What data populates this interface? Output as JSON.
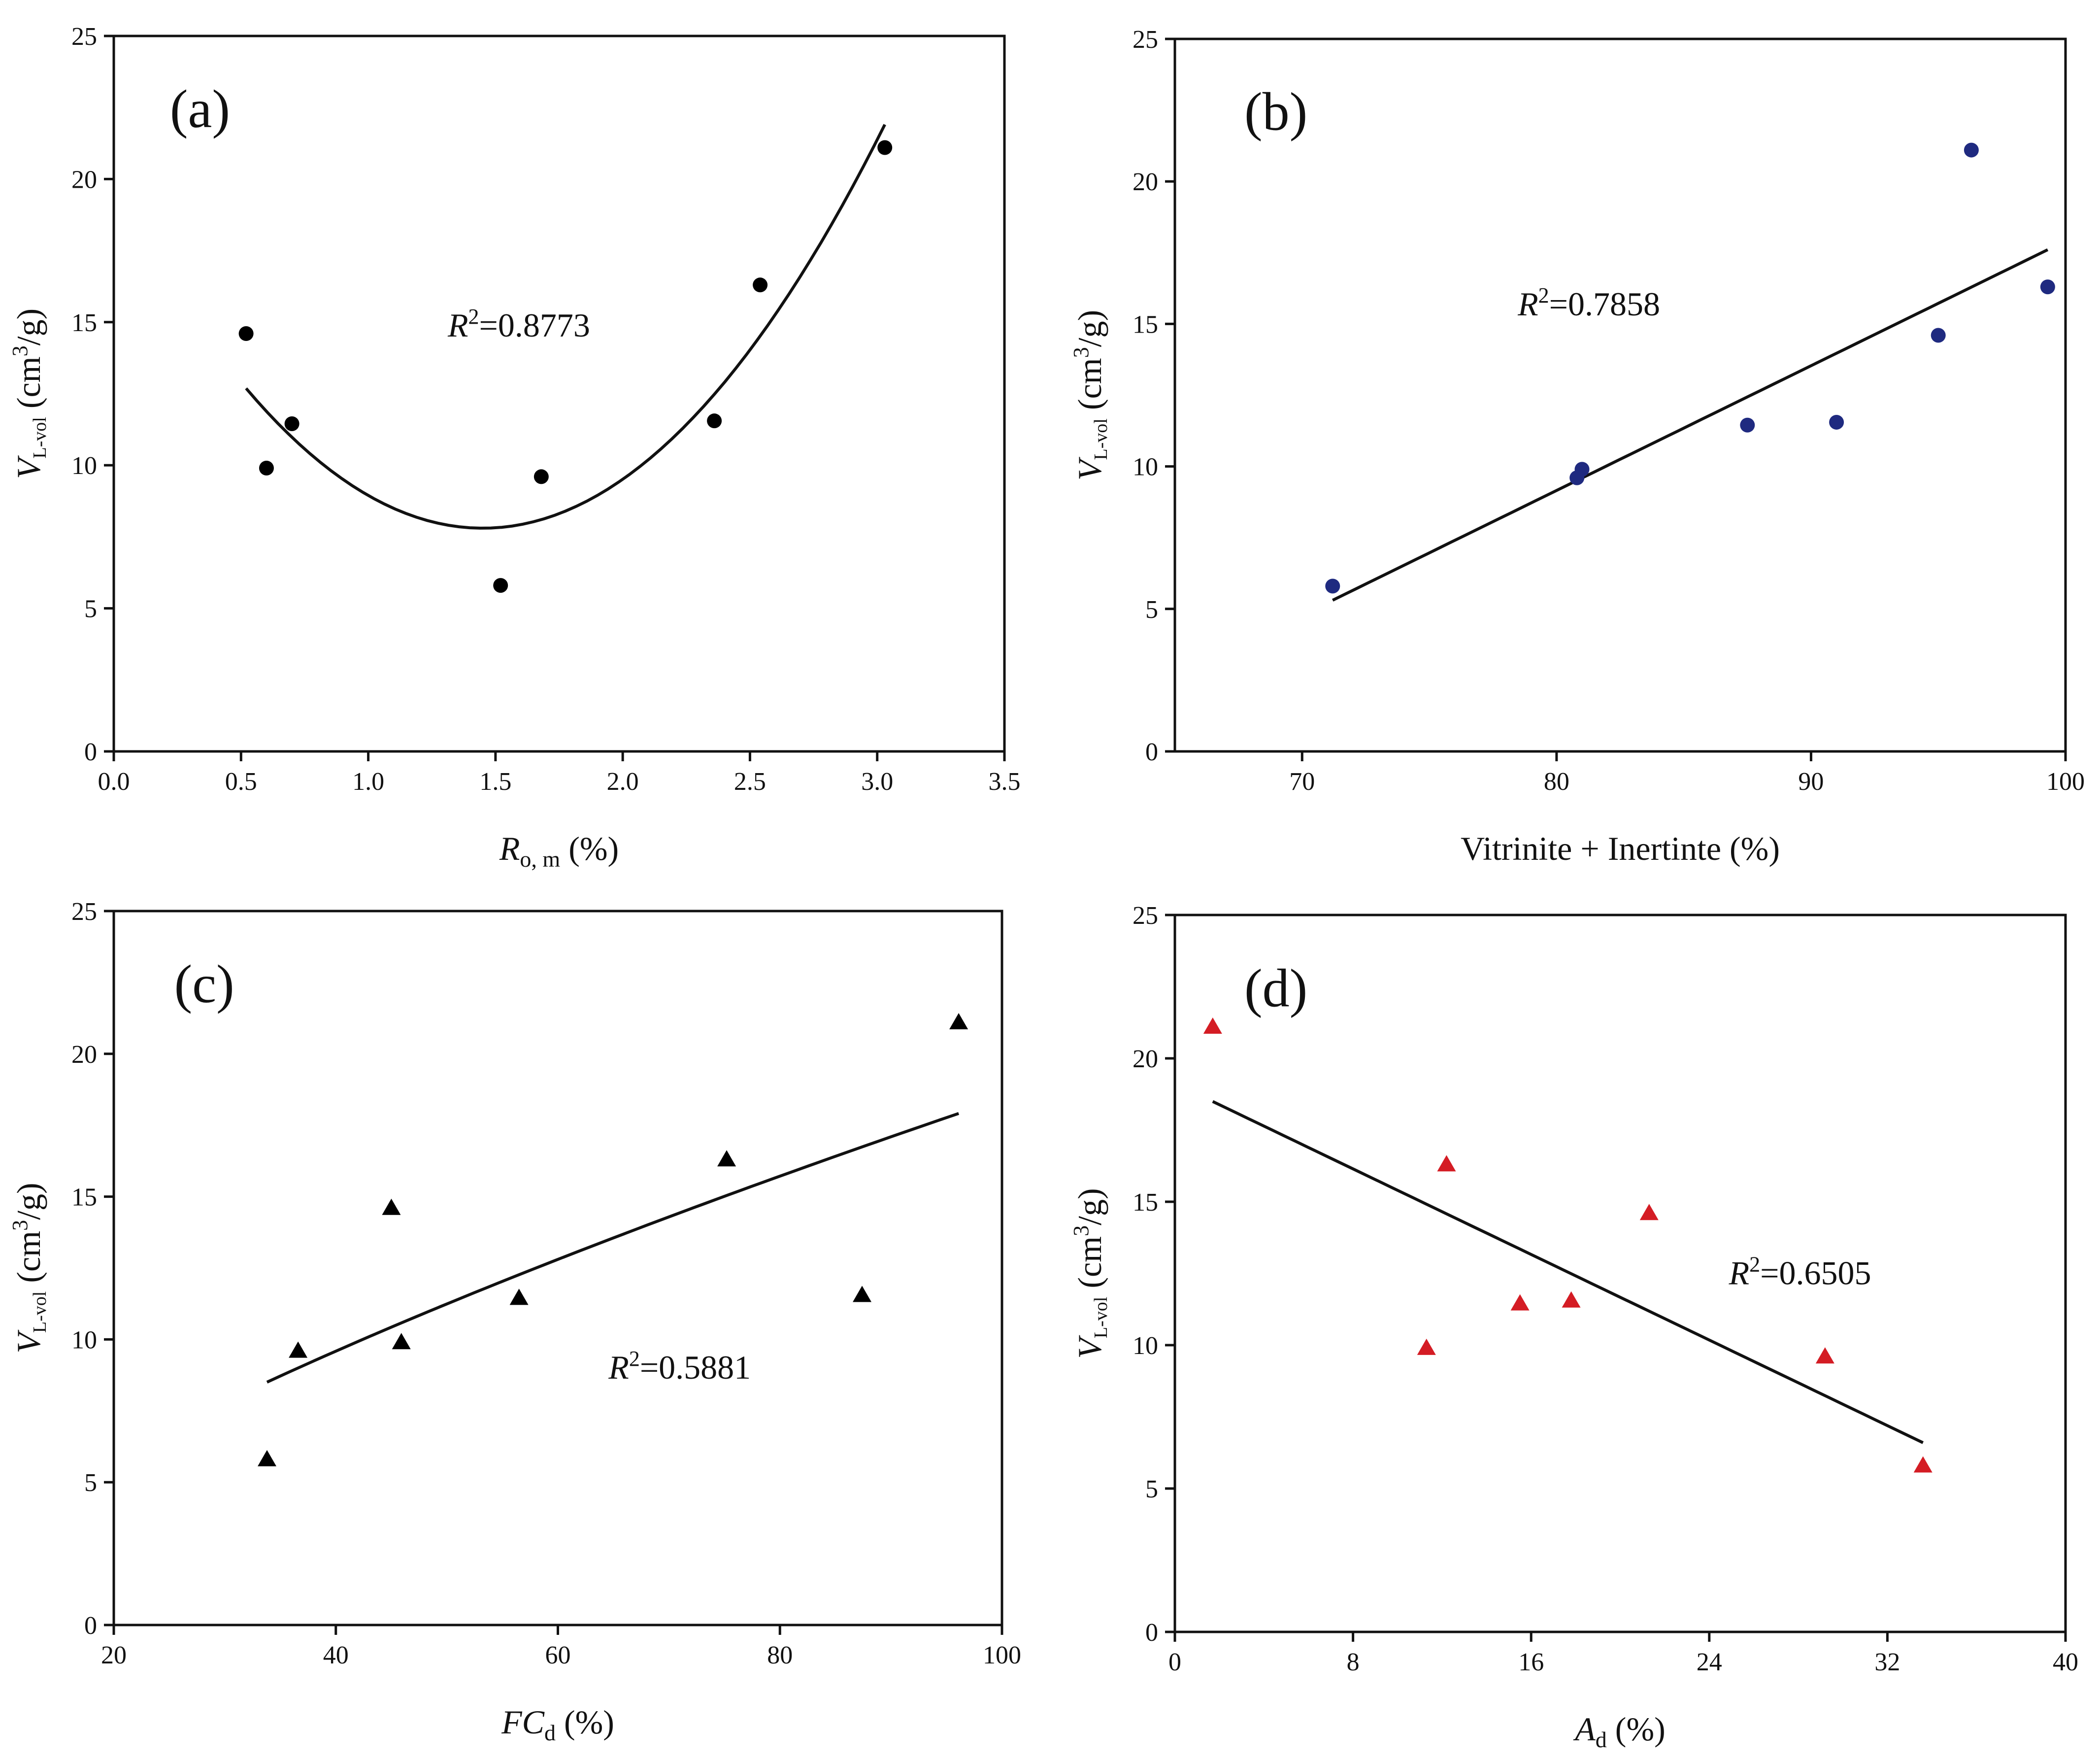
{
  "chart_data": [
    {
      "panel_label": "(a)",
      "type": "scatter",
      "marker": "circle",
      "color": "#000000",
      "x": [
        0.52,
        0.6,
        0.7,
        1.52,
        1.68,
        2.36,
        2.54,
        3.03
      ],
      "y": [
        14.6,
        9.9,
        11.45,
        5.8,
        9.6,
        11.55,
        16.3,
        21.1
      ],
      "fit": {
        "type": "quadratic-vertex",
        "a": 5.65,
        "h": 1.45,
        "k": 7.8,
        "range": [
          0.52,
          3.03
        ]
      },
      "r2": {
        "symbol": "R",
        "sup": "2",
        "text": "=0.8773"
      },
      "xlim": [
        0,
        3.5
      ],
      "ylim": [
        0,
        25
      ],
      "xticks": [
        "0.0",
        "0.5",
        "1.0",
        "1.5",
        "2.0",
        "2.5",
        "3.0",
        "3.5"
      ],
      "yticks": [
        "0",
        "5",
        "10",
        "15",
        "20",
        "25"
      ],
      "xlabel": {
        "main": "R",
        "sub": "o, m",
        "rest": " (%)"
      },
      "ylabel": {
        "main": "V",
        "sub": "L-vol",
        "rest": " (cm",
        "sup": "3",
        "end": "/g)"
      }
    },
    {
      "panel_label": "(b)",
      "type": "scatter",
      "marker": "circle",
      "color": "#1f2a80",
      "x": [
        71.2,
        80.8,
        81.0,
        87.5,
        91.0,
        95.0,
        96.3,
        99.3
      ],
      "y": [
        5.8,
        9.6,
        9.9,
        11.45,
        11.55,
        14.6,
        21.1,
        16.3
      ],
      "fit": {
        "type": "linear",
        "slope": 0.4377,
        "intercept": -25.86,
        "range": [
          71.2,
          99.3
        ]
      },
      "r2": {
        "symbol": "R",
        "sup": "2",
        "text": "=0.7858"
      },
      "xlim": [
        65,
        100
      ],
      "ylim": [
        0,
        25
      ],
      "xticks": [
        "70",
        "80",
        "90",
        "100"
      ],
      "yticks": [
        "0",
        "5",
        "10",
        "15",
        "20",
        "25"
      ],
      "xlabel": {
        "main": "",
        "sub": "",
        "rest": "Vitrinite + Inertinte (%)"
      },
      "ylabel": {
        "main": "V",
        "sub": "L-vol",
        "rest": " (cm",
        "sup": "3",
        "end": "/g)"
      }
    },
    {
      "panel_label": "(c)",
      "type": "scatter",
      "marker": "triangle",
      "color": "#000000",
      "x": [
        33.8,
        36.6,
        45.0,
        45.9,
        56.5,
        75.2,
        87.4,
        96.1
      ],
      "y": [
        5.8,
        9.6,
        14.6,
        9.9,
        11.45,
        16.3,
        11.55,
        21.1
      ],
      "fit": {
        "type": "power",
        "a": 0.691,
        "b": 0.713,
        "range": [
          33.8,
          96.1
        ]
      },
      "r2": {
        "symbol": "R",
        "sup": "2",
        "text": "=0.5881"
      },
      "xlim": [
        20,
        100
      ],
      "ylim": [
        0,
        25
      ],
      "xticks": [
        "20",
        "40",
        "60",
        "80",
        "100"
      ],
      "yticks": [
        "0",
        "5",
        "10",
        "15",
        "20",
        "25"
      ],
      "xlabel": {
        "main": "FC",
        "sub": "d",
        "rest": " (%)"
      },
      "ylabel": {
        "main": "V",
        "sub": "L-vol",
        "rest": " (cm",
        "sup": "3",
        "end": "/g)"
      }
    },
    {
      "panel_label": "(d)",
      "type": "scatter",
      "marker": "triangle",
      "color": "#d41c24",
      "x": [
        1.7,
        11.3,
        12.2,
        15.5,
        17.8,
        21.3,
        29.2,
        33.6
      ],
      "y": [
        21.1,
        9.9,
        16.3,
        11.45,
        11.55,
        14.6,
        9.6,
        5.8
      ],
      "fit": {
        "type": "linear",
        "slope": -0.373,
        "intercept": 19.13,
        "range": [
          1.7,
          33.6
        ]
      },
      "r2": {
        "symbol": "R",
        "sup": "2",
        "text": "=0.6505"
      },
      "xlim": [
        0,
        40
      ],
      "ylim": [
        0,
        25
      ],
      "xticks": [
        "0",
        "8",
        "16",
        "24",
        "32",
        "40"
      ],
      "yticks": [
        "0",
        "5",
        "10",
        "15",
        "20",
        "25"
      ],
      "xlabel": {
        "main": "A",
        "sub": "d",
        "rest": " (%)"
      },
      "ylabel": {
        "main": "V",
        "sub": "L-vol",
        "rest": " (cm",
        "sup": "3",
        "end": "/g)"
      }
    }
  ]
}
